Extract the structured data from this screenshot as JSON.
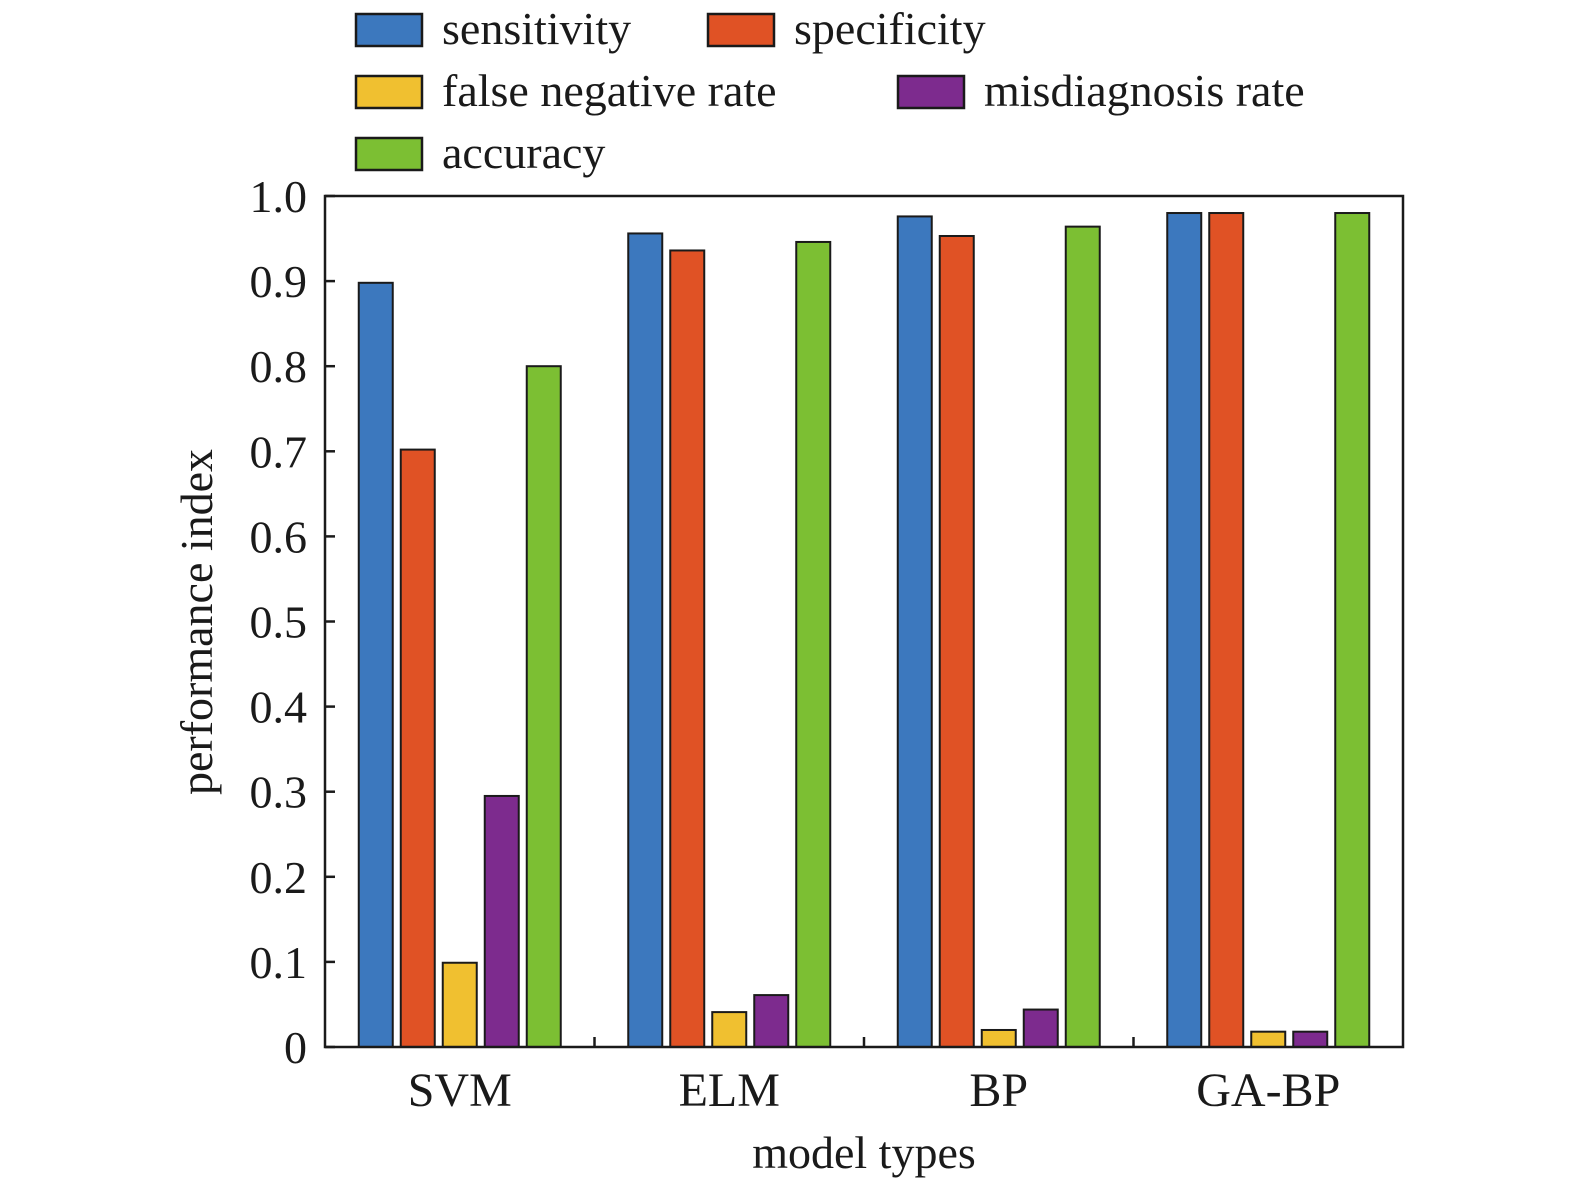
{
  "chart_data": {
    "type": "bar",
    "title": "",
    "xlabel": "model types",
    "ylabel": "performance index",
    "categories": [
      "SVM",
      "ELM",
      "BP",
      "GA-BP"
    ],
    "ylim": [
      0,
      1.0
    ],
    "yticks": [
      0,
      0.1,
      0.2,
      0.3,
      0.4,
      0.5,
      0.6,
      0.7,
      0.8,
      0.9,
      1.0
    ],
    "ytick_labels": [
      "0",
      "0.1",
      "0.2",
      "0.3",
      "0.4",
      "0.5",
      "0.6",
      "0.7",
      "0.8",
      "0.9",
      "1.0"
    ],
    "grid": false,
    "legend_position": "top",
    "series": [
      {
        "name": "sensitivity",
        "color": "#3c78be",
        "values": [
          0.898,
          0.956,
          0.976,
          0.98
        ]
      },
      {
        "name": "specificity",
        "color": "#e05225",
        "values": [
          0.702,
          0.936,
          0.953,
          0.98
        ]
      },
      {
        "name": "false negative rate",
        "color": "#f0c030",
        "values": [
          0.099,
          0.041,
          0.02,
          0.018
        ]
      },
      {
        "name": "misdiagnosis rate",
        "color": "#7d2b8e",
        "values": [
          0.295,
          0.061,
          0.044,
          0.018
        ]
      },
      {
        "name": "accuracy",
        "color": "#7cbf33",
        "values": [
          0.8,
          0.946,
          0.964,
          0.98
        ]
      }
    ]
  }
}
